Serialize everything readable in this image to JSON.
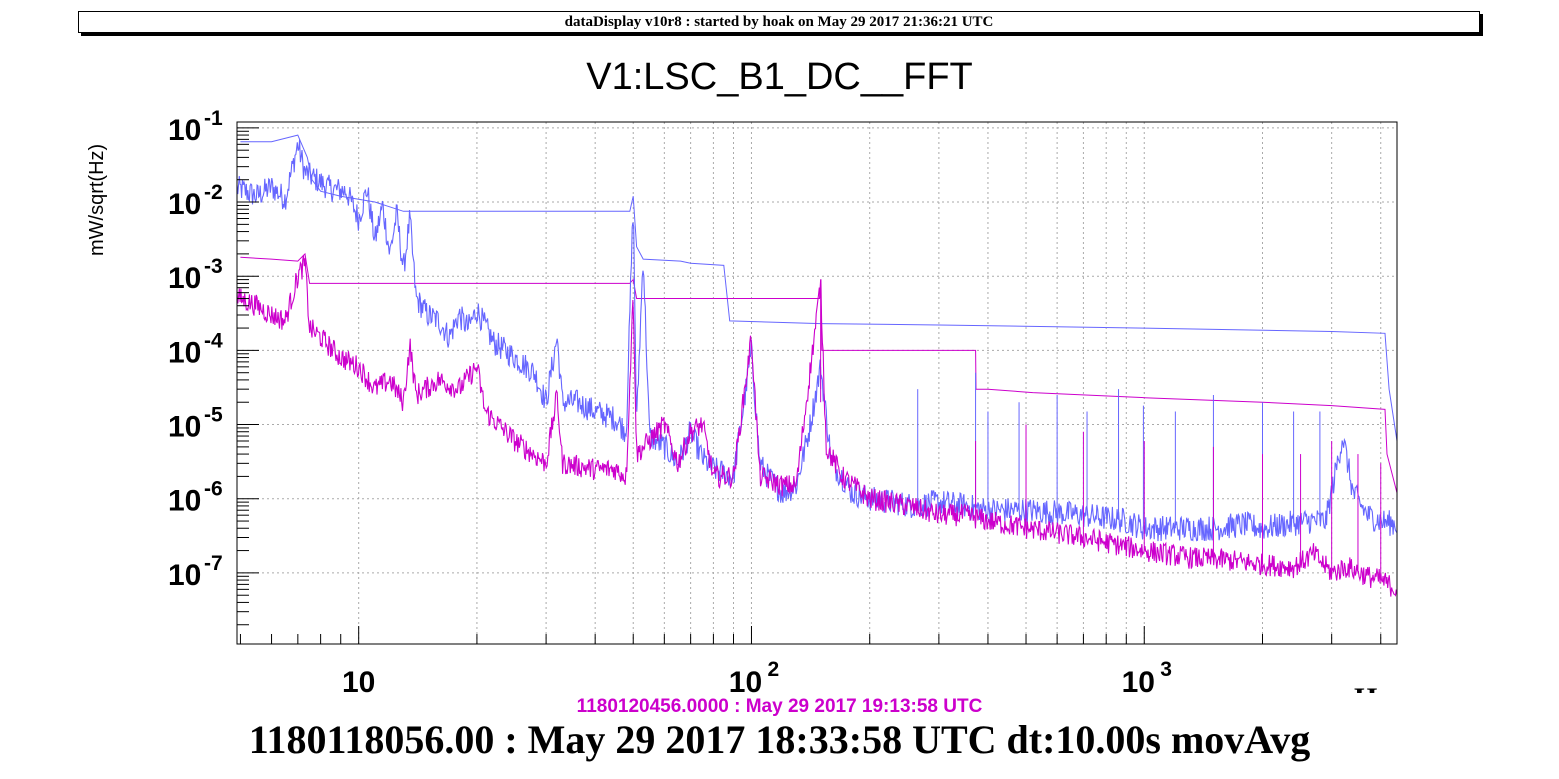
{
  "header": {
    "text": "dataDisplay v10r8 : started by hoak on May 29 2017 21:36:21 UTC"
  },
  "footer": {
    "reference_time": "1180120456.0000 : May 29 2017 19:13:58 UTC",
    "current_time": "1180118056.00 : May 29 2017 18:33:58 UTC dt:10.00s movAvg"
  },
  "colors": {
    "current": "#6666ff",
    "reference": "#cc00cc",
    "grid": "#aaaaaa",
    "frame": "#000000"
  },
  "chart_data": {
    "type": "line",
    "title": "V1:LSC_B1_DC__FFT",
    "ylabel": "mW/sqrt(Hz)",
    "xlabel": "Hz",
    "xscale": "log",
    "yscale": "log",
    "xlim": [
      4.9,
      4400
    ],
    "ylim": [
      1.1e-08,
      0.12
    ],
    "grid": true,
    "x_ticks": [
      {
        "value": 10,
        "label": "10"
      },
      {
        "value": 100,
        "label": "2"
      },
      {
        "value": 1000,
        "label": "3"
      }
    ],
    "x_tick_bases": [
      "10",
      "10",
      "10"
    ],
    "y_ticks": [
      {
        "value": 0.1,
        "base": "10",
        "exp": "-1"
      },
      {
        "value": 0.01,
        "base": "10",
        "exp": "-2"
      },
      {
        "value": 0.001,
        "base": "10",
        "exp": "-3"
      },
      {
        "value": 0.0001,
        "base": "10",
        "exp": "-4"
      },
      {
        "value": 1e-05,
        "base": "10",
        "exp": "-5"
      },
      {
        "value": 1e-06,
        "base": "10",
        "exp": "-6"
      },
      {
        "value": 1e-07,
        "base": "10",
        "exp": "-7"
      }
    ],
    "series": [
      {
        "role": "current",
        "color": "#6666ff",
        "spectrum": [
          [
            5,
            0.015
          ],
          [
            5.5,
            0.012
          ],
          [
            6,
            0.016
          ],
          [
            6.5,
            0.011
          ],
          [
            7,
            0.06
          ],
          [
            7.3,
            0.025
          ],
          [
            7.8,
            0.02
          ],
          [
            8.5,
            0.015
          ],
          [
            9.3,
            0.014
          ],
          [
            10,
            0.006
          ],
          [
            10.5,
            0.015
          ],
          [
            11,
            0.003
          ],
          [
            11.5,
            0.009
          ],
          [
            12,
            0.002
          ],
          [
            12.5,
            0.007
          ],
          [
            13,
            0.0012
          ],
          [
            13.5,
            0.006
          ],
          [
            14,
            0.0005
          ],
          [
            15,
            0.0003
          ],
          [
            16,
            0.00025
          ],
          [
            17,
            0.00015
          ],
          [
            18,
            0.0003
          ],
          [
            19,
            0.0002
          ],
          [
            20,
            0.00035
          ],
          [
            22,
            0.00013
          ],
          [
            25,
            8e-05
          ],
          [
            28,
            5e-05
          ],
          [
            30,
            2e-05
          ],
          [
            32,
            0.00015
          ],
          [
            33,
            2e-05
          ],
          [
            36,
            2e-05
          ],
          [
            40,
            1.5e-05
          ],
          [
            45,
            1.2e-05
          ],
          [
            48,
            8e-06
          ],
          [
            50,
            0.01
          ],
          [
            51,
            1e-05
          ],
          [
            53,
            0.002
          ],
          [
            55,
            7e-06
          ],
          [
            60,
            5e-06
          ],
          [
            65,
            3e-06
          ],
          [
            70,
            8e-06
          ],
          [
            75,
            3.5e-06
          ],
          [
            80,
            2.5e-06
          ],
          [
            90,
            2e-06
          ],
          [
            100,
            0.0001
          ],
          [
            105,
            3e-06
          ],
          [
            110,
            2e-06
          ],
          [
            120,
            1.2e-06
          ],
          [
            130,
            1.5e-06
          ],
          [
            140,
            8e-06
          ],
          [
            150,
            6e-05
          ],
          [
            160,
            3e-06
          ],
          [
            170,
            2e-06
          ],
          [
            180,
            1.2e-06
          ],
          [
            200,
            1e-06
          ],
          [
            230,
            9e-07
          ],
          [
            260,
            8e-07
          ],
          [
            300,
            9e-07
          ],
          [
            350,
            8e-07
          ],
          [
            400,
            7e-07
          ],
          [
            500,
            7e-07
          ],
          [
            600,
            6.5e-07
          ],
          [
            700,
            6e-07
          ],
          [
            800,
            5.5e-07
          ],
          [
            900,
            5e-07
          ],
          [
            1000,
            4e-07
          ],
          [
            1200,
            4e-07
          ],
          [
            1500,
            4e-07
          ],
          [
            1800,
            4.5e-07
          ],
          [
            2000,
            4e-07
          ],
          [
            2300,
            4.5e-07
          ],
          [
            2600,
            5e-07
          ],
          [
            2900,
            5e-07
          ],
          [
            3200,
            7e-06
          ],
          [
            3400,
            1.2e-06
          ],
          [
            3700,
            6e-07
          ],
          [
            4000,
            5e-07
          ],
          [
            4400,
            4.5e-07
          ]
        ],
        "spikes": [
          [
            150,
            3e-05
          ],
          [
            265,
            3e-05
          ],
          [
            372,
            5e-05
          ],
          [
            400,
            1.5e-05
          ],
          [
            480,
            2e-05
          ],
          [
            600,
            2.5e-05
          ],
          [
            715,
            1.5e-05
          ],
          [
            860,
            3e-05
          ],
          [
            995,
            1.8e-05
          ],
          [
            1200,
            1.5e-05
          ],
          [
            1500,
            2.5e-05
          ],
          [
            2000,
            2e-05
          ],
          [
            2400,
            1.5e-05
          ],
          [
            2800,
            1.5e-05
          ]
        ],
        "max_hold": [
          [
            5,
            0.065
          ],
          [
            6,
            0.065
          ],
          [
            7,
            0.08
          ],
          [
            7.4,
            0.04
          ],
          [
            7.6,
            0.02
          ],
          [
            8,
            0.014
          ],
          [
            9,
            0.012
          ],
          [
            11,
            0.01
          ],
          [
            13,
            0.0075
          ],
          [
            20,
            0.0075
          ],
          [
            30,
            0.0075
          ],
          [
            49,
            0.0075
          ],
          [
            50,
            0.012
          ],
          [
            51,
            0.0025
          ],
          [
            53,
            0.0017
          ],
          [
            66,
            0.0016
          ],
          [
            70,
            0.0015
          ],
          [
            85,
            0.0014
          ],
          [
            88,
            0.00025
          ],
          [
            150,
            0.00023
          ],
          [
            300,
            0.00022
          ],
          [
            1000,
            0.0002
          ],
          [
            3000,
            0.00018
          ],
          [
            4100,
            0.00017
          ],
          [
            4200,
            3e-05
          ],
          [
            4400,
            6e-06
          ]
        ]
      },
      {
        "role": "reference",
        "color": "#cc00cc",
        "spectrum": [
          [
            5,
            0.0005
          ],
          [
            5.5,
            0.0004
          ],
          [
            6,
            0.0003
          ],
          [
            6.5,
            0.00025
          ],
          [
            7,
            0.001
          ],
          [
            7.3,
            0.0015
          ],
          [
            7.5,
            0.0002
          ],
          [
            8,
            0.00015
          ],
          [
            9,
            8e-05
          ],
          [
            10,
            6e-05
          ],
          [
            11,
            3e-05
          ],
          [
            12,
            4e-05
          ],
          [
            13,
            2e-05
          ],
          [
            13.5,
            0.00012
          ],
          [
            14,
            2.5e-05
          ],
          [
            16,
            4e-05
          ],
          [
            18,
            3e-05
          ],
          [
            20,
            6e-05
          ],
          [
            21,
            1.5e-05
          ],
          [
            25,
            6e-06
          ],
          [
            30,
            3e-06
          ],
          [
            32,
            2.5e-05
          ],
          [
            33,
            3e-06
          ],
          [
            40,
            2.5e-06
          ],
          [
            45,
            2.5e-06
          ],
          [
            48,
            2e-06
          ],
          [
            50,
            0.0006
          ],
          [
            51,
            4e-06
          ],
          [
            60,
            1e-05
          ],
          [
            65,
            3e-06
          ],
          [
            70,
            8e-06
          ],
          [
            75,
            1e-05
          ],
          [
            80,
            2e-06
          ],
          [
            90,
            2e-06
          ],
          [
            100,
            0.00015
          ],
          [
            105,
            2e-06
          ],
          [
            120,
            1.5e-06
          ],
          [
            130,
            1.5e-06
          ],
          [
            150,
            0.0008
          ],
          [
            155,
            5e-06
          ],
          [
            170,
            2e-06
          ],
          [
            200,
            1e-06
          ],
          [
            250,
            8e-07
          ],
          [
            300,
            6e-07
          ],
          [
            350,
            6e-07
          ],
          [
            400,
            5e-07
          ],
          [
            500,
            4e-07
          ],
          [
            700,
            3e-07
          ],
          [
            1000,
            2e-07
          ],
          [
            1300,
            1.6e-07
          ],
          [
            1600,
            1.5e-07
          ],
          [
            2000,
            1.3e-07
          ],
          [
            2400,
            1.2e-07
          ],
          [
            2700,
            1.8e-07
          ],
          [
            3000,
            1e-07
          ],
          [
            3300,
            1.2e-07
          ],
          [
            3700,
            9e-08
          ],
          [
            4000,
            8e-08
          ],
          [
            4400,
            6e-08
          ]
        ],
        "spikes": [
          [
            150,
            2e-05
          ],
          [
            372,
            6e-06
          ],
          [
            500,
            1e-05
          ],
          [
            700,
            8e-06
          ],
          [
            1000,
            6e-06
          ],
          [
            1500,
            5e-06
          ],
          [
            2000,
            4e-06
          ],
          [
            2500,
            4e-06
          ],
          [
            3000,
            6e-06
          ],
          [
            3500,
            4e-06
          ],
          [
            4000,
            3e-06
          ]
        ],
        "max_hold": [
          [
            5,
            0.0018
          ],
          [
            6,
            0.0017
          ],
          [
            7,
            0.0016
          ],
          [
            7.3,
            0.002
          ],
          [
            7.5,
            0.0008
          ],
          [
            12,
            0.0008
          ],
          [
            30,
            0.0008
          ],
          [
            49,
            0.0008
          ],
          [
            50,
            0.0009
          ],
          [
            51,
            0.0005
          ],
          [
            100,
            0.0005
          ],
          [
            149,
            0.0005
          ],
          [
            150,
            0.0009
          ],
          [
            151,
            0.0001
          ],
          [
            200,
            0.0001
          ],
          [
            372,
            0.0001
          ],
          [
            373,
            3e-05
          ],
          [
            400,
            3e-05
          ],
          [
            520,
            2.7e-05
          ],
          [
            1000,
            2.3e-05
          ],
          [
            2000,
            2e-05
          ],
          [
            3000,
            1.8e-05
          ],
          [
            4100,
            1.6e-05
          ],
          [
            4150,
            4e-06
          ],
          [
            4400,
            1.2e-06
          ]
        ]
      }
    ]
  }
}
